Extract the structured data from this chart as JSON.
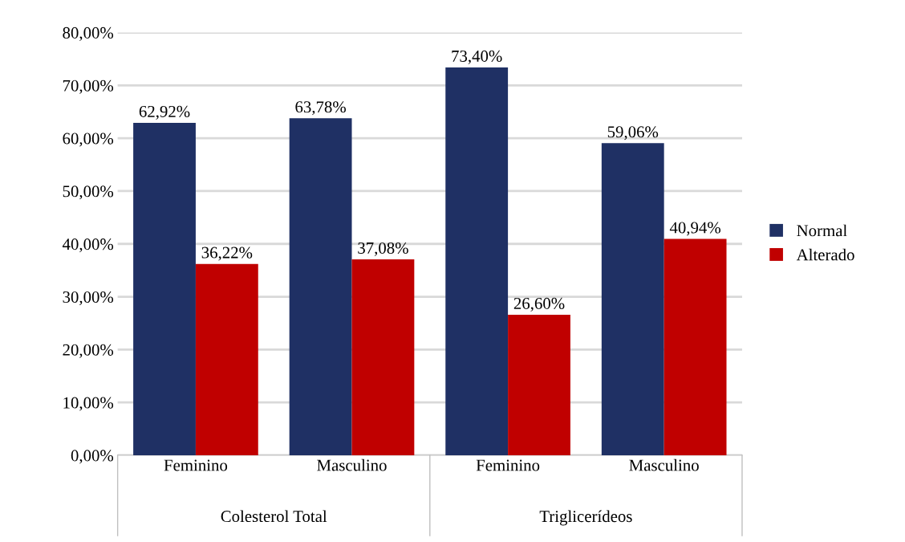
{
  "chart_data": {
    "type": "bar",
    "categories": [
      "Feminino",
      "Masculino",
      "Feminino",
      "Masculino"
    ],
    "series": [
      {
        "name": "Normal",
        "color": "#1f3064",
        "values": [
          62.92,
          63.78,
          73.4,
          59.06
        ],
        "value_labels": [
          "62,92%",
          "63,78%",
          "73,40%",
          "59,06%"
        ]
      },
      {
        "name": "Alterado",
        "color": "#c00000",
        "values": [
          36.22,
          37.08,
          26.6,
          40.94
        ],
        "value_labels": [
          "36,22%",
          "37,08%",
          "26,60%",
          "40,94%"
        ]
      }
    ],
    "annotations": [
      "Colesterol Total",
      "Triglicerídeos"
    ],
    "ylim": [
      0,
      80
    ],
    "yticks": [
      {
        "value": 0,
        "label": "0,00%"
      },
      {
        "value": 10,
        "label": "10,00%"
      },
      {
        "value": 20,
        "label": "20,00%"
      },
      {
        "value": 30,
        "label": "30,00%"
      },
      {
        "value": 40,
        "label": "40,00%"
      },
      {
        "value": 50,
        "label": "50,00%"
      },
      {
        "value": 60,
        "label": "60,00%"
      },
      {
        "value": 70,
        "label": "70,00%"
      },
      {
        "value": 80,
        "label": "80,00%"
      }
    ],
    "grid": "y",
    "legend": "right"
  }
}
